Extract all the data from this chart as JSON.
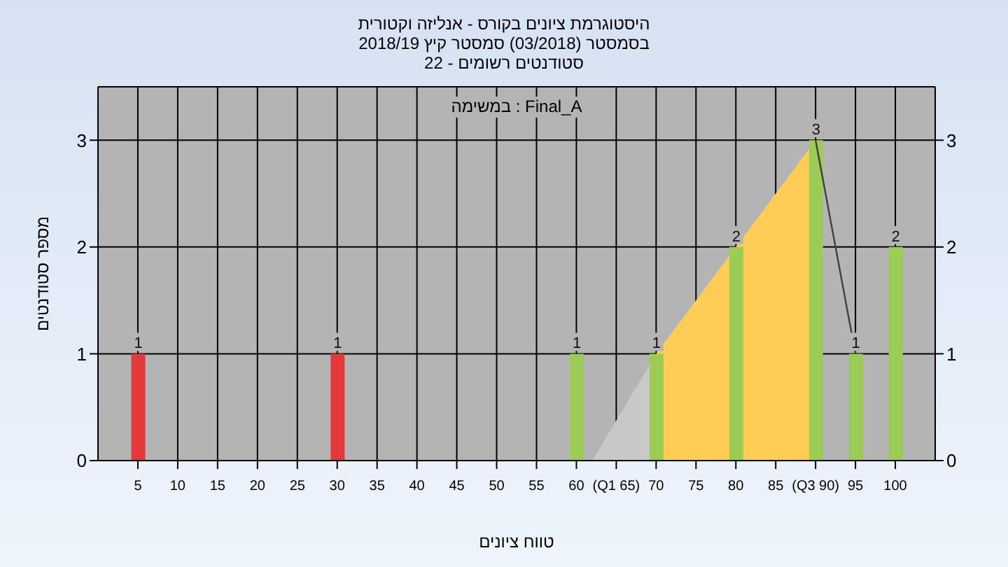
{
  "chart_data": {
    "type": "bar",
    "title": "היסטוגרמת ציונים בקורס - אנליזה וקטורית",
    "subtitle": "בסמסטר  (03/2018)  סמסטר קיץ 2018/19\nסטודנטים רשומים - 22",
    "xlabel": "טווח ציונים",
    "ylabel": "מספר סטודנטים",
    "annotations": [
      "במשימה : Final_A"
    ],
    "series": [
      {
        "type": "area",
        "color": "#c8c8c8",
        "x": [
          62,
          70
        ],
        "values": [
          0,
          1
        ]
      },
      {
        "type": "area",
        "color": "#ffcc55",
        "x": [
          70,
          80,
          90
        ],
        "values": [
          1,
          2,
          3
        ]
      },
      {
        "type": "line",
        "color": "#404040",
        "x": [
          90,
          95
        ],
        "values": [
          3,
          1
        ]
      },
      {
        "x": [
          5,
          30,
          60,
          70,
          80,
          90,
          95,
          100
        ],
        "values": [
          1,
          1,
          1,
          1,
          2,
          3,
          1,
          2
        ],
        "value_labels": [
          "1",
          "1",
          "1",
          "1",
          "2",
          "3",
          "1",
          "2"
        ],
        "colors": [
          "#e23a3a",
          "#e23a3a",
          "#9ccc55",
          "#9ccc55",
          "#9ccc55",
          "#9ccc55",
          "#9ccc55",
          "#9ccc55"
        ]
      }
    ],
    "xlim": [
      0,
      105
    ],
    "xticks": [
      5,
      10,
      15,
      20,
      25,
      30,
      35,
      40,
      45,
      50,
      55,
      60,
      {
        "value": 65,
        "label": "(Q1 65)"
      },
      70,
      75,
      80,
      85,
      {
        "value": 90,
        "label": "(Q3 90)"
      },
      95,
      100
    ],
    "ylim": [
      0,
      3.5
    ],
    "yticks": [
      0,
      1,
      2,
      3
    ],
    "y2lim": [
      0,
      3.5
    ],
    "y2ticks": [
      0,
      1,
      2,
      3
    ],
    "grid": true
  }
}
